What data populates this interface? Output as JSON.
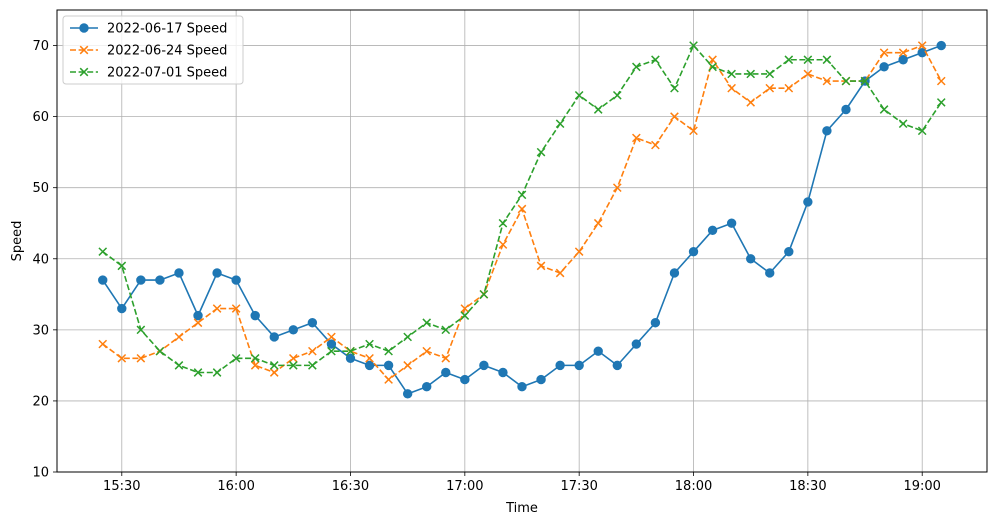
{
  "chart_data": {
    "type": "line",
    "title": "",
    "xlabel": "Time",
    "ylabel": "Speed",
    "ylim": [
      10,
      75
    ],
    "xlim": [
      "15:13",
      "19:17"
    ],
    "y_ticks": [
      10,
      20,
      30,
      40,
      50,
      60,
      70
    ],
    "x_ticks": [
      "15:30",
      "16:00",
      "16:30",
      "17:00",
      "17:30",
      "18:00",
      "18:30",
      "19:00"
    ],
    "grid": true,
    "legend_position": "top-left",
    "x": [
      "15:25",
      "15:30",
      "15:35",
      "15:40",
      "15:45",
      "15:50",
      "15:55",
      "16:00",
      "16:05",
      "16:10",
      "16:15",
      "16:20",
      "16:25",
      "16:30",
      "16:35",
      "16:40",
      "16:45",
      "16:50",
      "16:55",
      "17:00",
      "17:05",
      "17:10",
      "17:15",
      "17:20",
      "17:25",
      "17:30",
      "17:35",
      "17:40",
      "17:45",
      "17:50",
      "17:55",
      "18:00",
      "18:05",
      "18:10",
      "18:15",
      "18:20",
      "18:25",
      "18:30",
      "18:35",
      "18:40",
      "18:45",
      "18:50",
      "18:55",
      "19:00",
      "19:05"
    ],
    "series": [
      {
        "name": "2022-06-17 Speed",
        "color": "#1f77b4",
        "linestyle": "solid",
        "marker": "circle",
        "values": [
          37,
          33,
          37,
          37,
          38,
          32,
          38,
          37,
          32,
          29,
          30,
          31,
          28,
          26,
          25,
          25,
          21,
          22,
          24,
          23,
          25,
          24,
          22,
          23,
          25,
          25,
          27,
          25,
          28,
          31,
          38,
          41,
          44,
          45,
          40,
          38,
          41,
          48,
          58,
          61,
          65,
          67,
          68,
          69,
          70
        ]
      },
      {
        "name": "2022-06-24 Speed",
        "color": "#ff7f0e",
        "linestyle": "dashed",
        "marker": "x",
        "values": [
          28,
          26,
          26,
          27,
          29,
          31,
          33,
          33,
          25,
          24,
          26,
          27,
          29,
          27,
          26,
          23,
          25,
          27,
          26,
          33,
          35,
          42,
          47,
          39,
          38,
          41,
          45,
          50,
          57,
          56,
          60,
          58,
          68,
          64,
          62,
          64,
          64,
          66,
          65,
          65,
          65,
          69,
          69,
          70,
          65
        ]
      },
      {
        "name": "2022-07-01 Speed",
        "color": "#2ca02c",
        "linestyle": "dashed",
        "marker": "x",
        "values": [
          41,
          39,
          30,
          27,
          25,
          24,
          24,
          26,
          26,
          25,
          25,
          25,
          27,
          27,
          28,
          27,
          29,
          31,
          30,
          32,
          35,
          45,
          49,
          55,
          59,
          63,
          61,
          63,
          67,
          68,
          64,
          70,
          67,
          66,
          66,
          66,
          68,
          68,
          68,
          65,
          65,
          61,
          59,
          58,
          62
        ]
      }
    ]
  }
}
